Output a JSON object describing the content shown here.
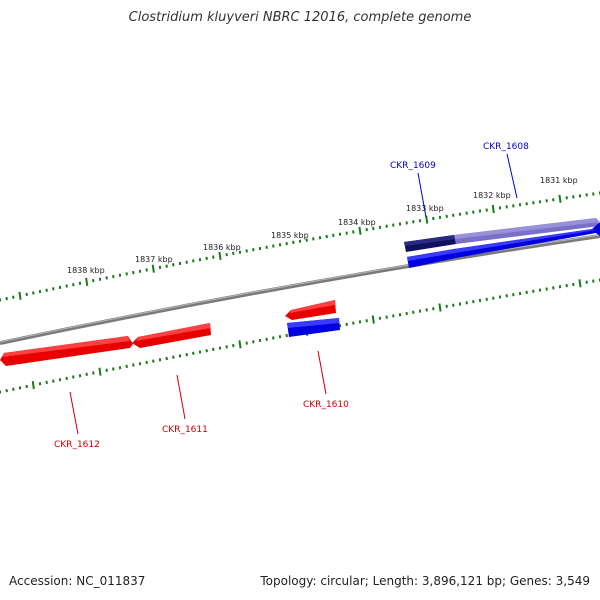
{
  "title": "Clostridium kluyveri NBRC 12016, complete genome",
  "footer": {
    "accession": "Accession: NC_011837",
    "summary": "Topology: circular; Length: 3,896,121 bp; Genes: 3,549"
  },
  "colors": {
    "forward_strand": "#0000e0",
    "reverse_strand": "#e80000",
    "selected_forward": "#101060",
    "tick": "#1a7a1a",
    "backbone": "#7a7a7a"
  },
  "scale_ticks": [
    {
      "label": "1831 kbp",
      "kbp": 1831
    },
    {
      "label": "1832 kbp",
      "kbp": 1832
    },
    {
      "label": "1833 kbp",
      "kbp": 1833
    },
    {
      "label": "1834 kbp",
      "kbp": 1834
    },
    {
      "label": "1835 kbp",
      "kbp": 1835
    },
    {
      "label": "1836 kbp",
      "kbp": 1836
    },
    {
      "label": "1837 kbp",
      "kbp": 1837
    },
    {
      "label": "1838 kbp",
      "kbp": 1838
    }
  ],
  "genes": [
    {
      "name": "CKR_1608",
      "strand": "forward"
    },
    {
      "name": "CKR_1609",
      "strand": "forward"
    },
    {
      "name": "CKR_1610",
      "strand": "reverse"
    },
    {
      "name": "CKR_1611",
      "strand": "reverse"
    },
    {
      "name": "CKR_1612",
      "strand": "reverse"
    }
  ]
}
